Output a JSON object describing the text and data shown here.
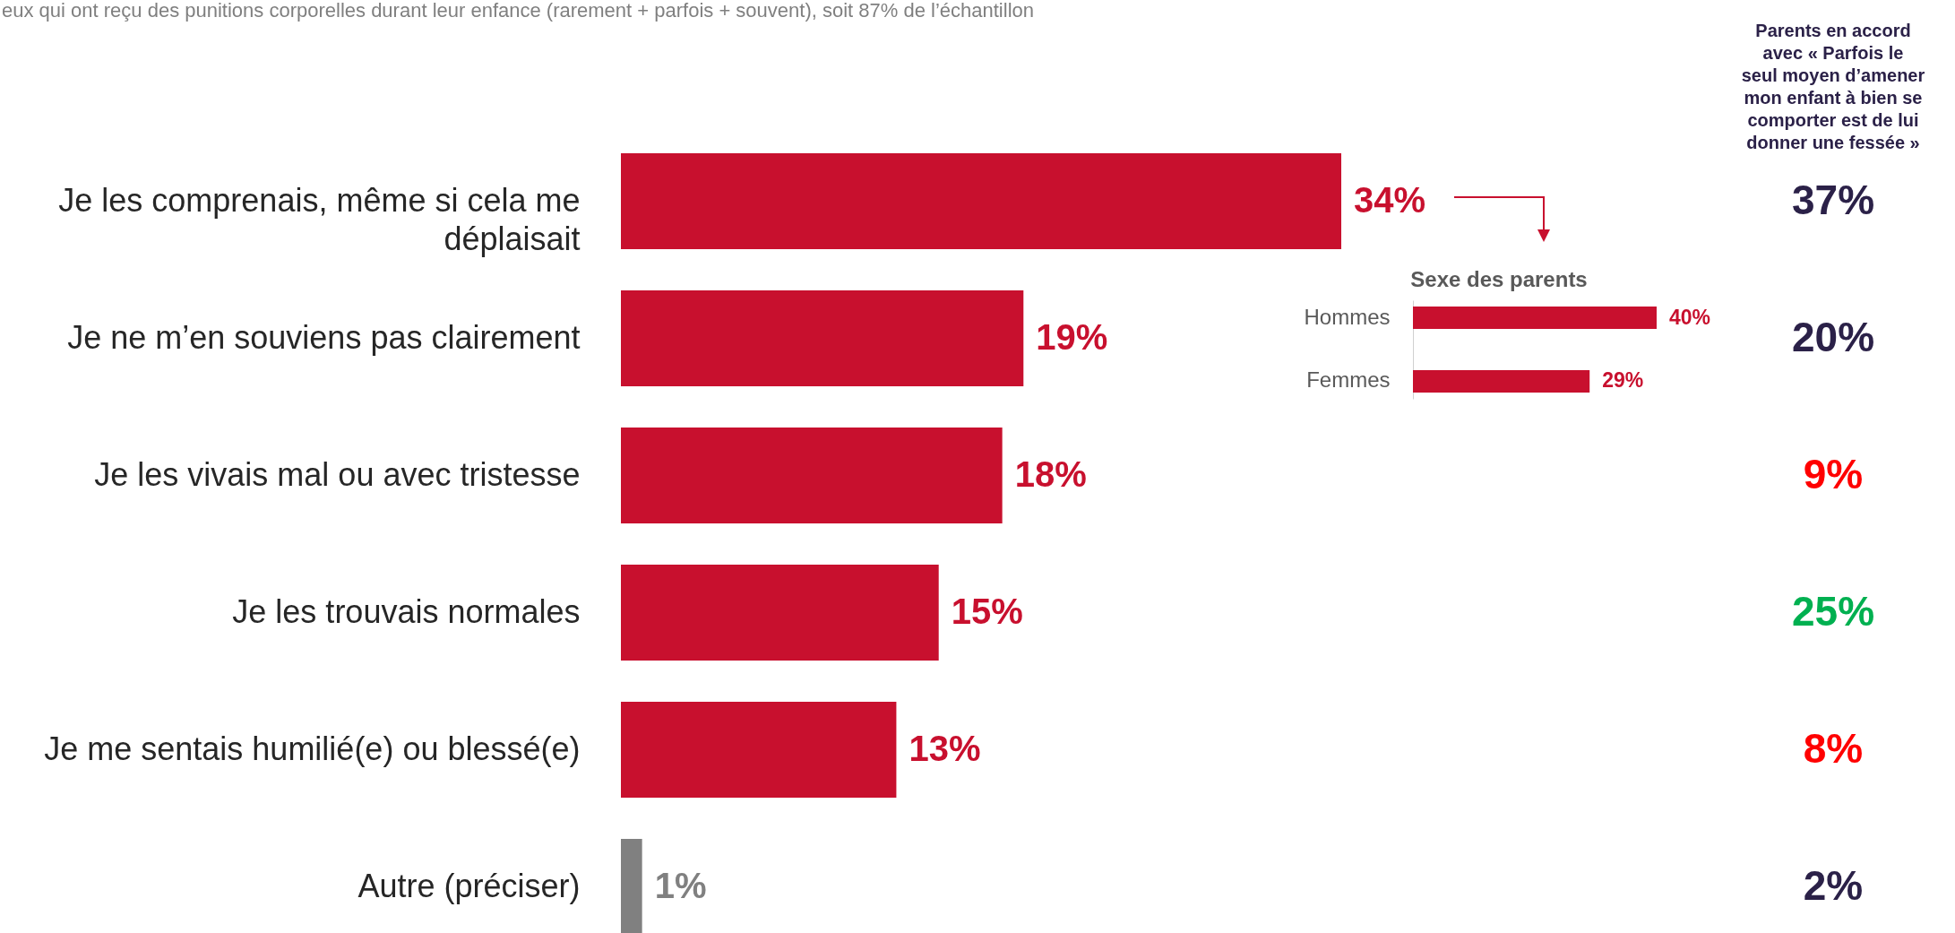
{
  "chart_data": [
    {
      "type": "bar",
      "orientation": "horizontal",
      "subtitle": "eux qui ont reçu des punitions corporelles durant leur enfance (rarement + parfois + souvent), soit 87% de l’échantillon",
      "categories": [
        "Je les comprenais, même si cela me déplaisait",
        "Je ne m’en souviens pas clairement",
        "Je les vivais mal ou avec tristesse",
        "Je les trouvais normales",
        "Je me sentais humilié(e) ou blessé(e)",
        "Autre (préciser)"
      ],
      "values": [
        34,
        19,
        18,
        15,
        13,
        1
      ],
      "colors": [
        "#c8102e",
        "#c8102e",
        "#c8102e",
        "#c8102e",
        "#c8102e",
        "#808080"
      ],
      "value_labels": [
        "34%",
        "19%",
        "18%",
        "15%",
        "13%",
        "1%"
      ]
    },
    {
      "type": "bar",
      "orientation": "horizontal",
      "title": "Sexe des parents",
      "categories": [
        "Hommes",
        "Femmes"
      ],
      "values": [
        40,
        29
      ],
      "colors": [
        "#c8102e",
        "#c8102e"
      ],
      "value_labels": [
        "40%",
        "29%"
      ]
    },
    {
      "type": "other",
      "title": "Parents en accord avec « Parfois le seul moyen d’amener mon enfant à bien se comporter est de lui donner une fessée »",
      "categories": [
        null,
        null,
        null,
        null,
        null,
        null
      ],
      "values": [
        37,
        20,
        9,
        25,
        8,
        2
      ],
      "colors": [
        "#2b2148",
        "#2b2148",
        "#ff0000",
        "#00b050",
        "#ff0000",
        "#2b2148"
      ],
      "value_labels": [
        "37%",
        "20%",
        "9%",
        "25%",
        "8%",
        "2%"
      ]
    }
  ]
}
